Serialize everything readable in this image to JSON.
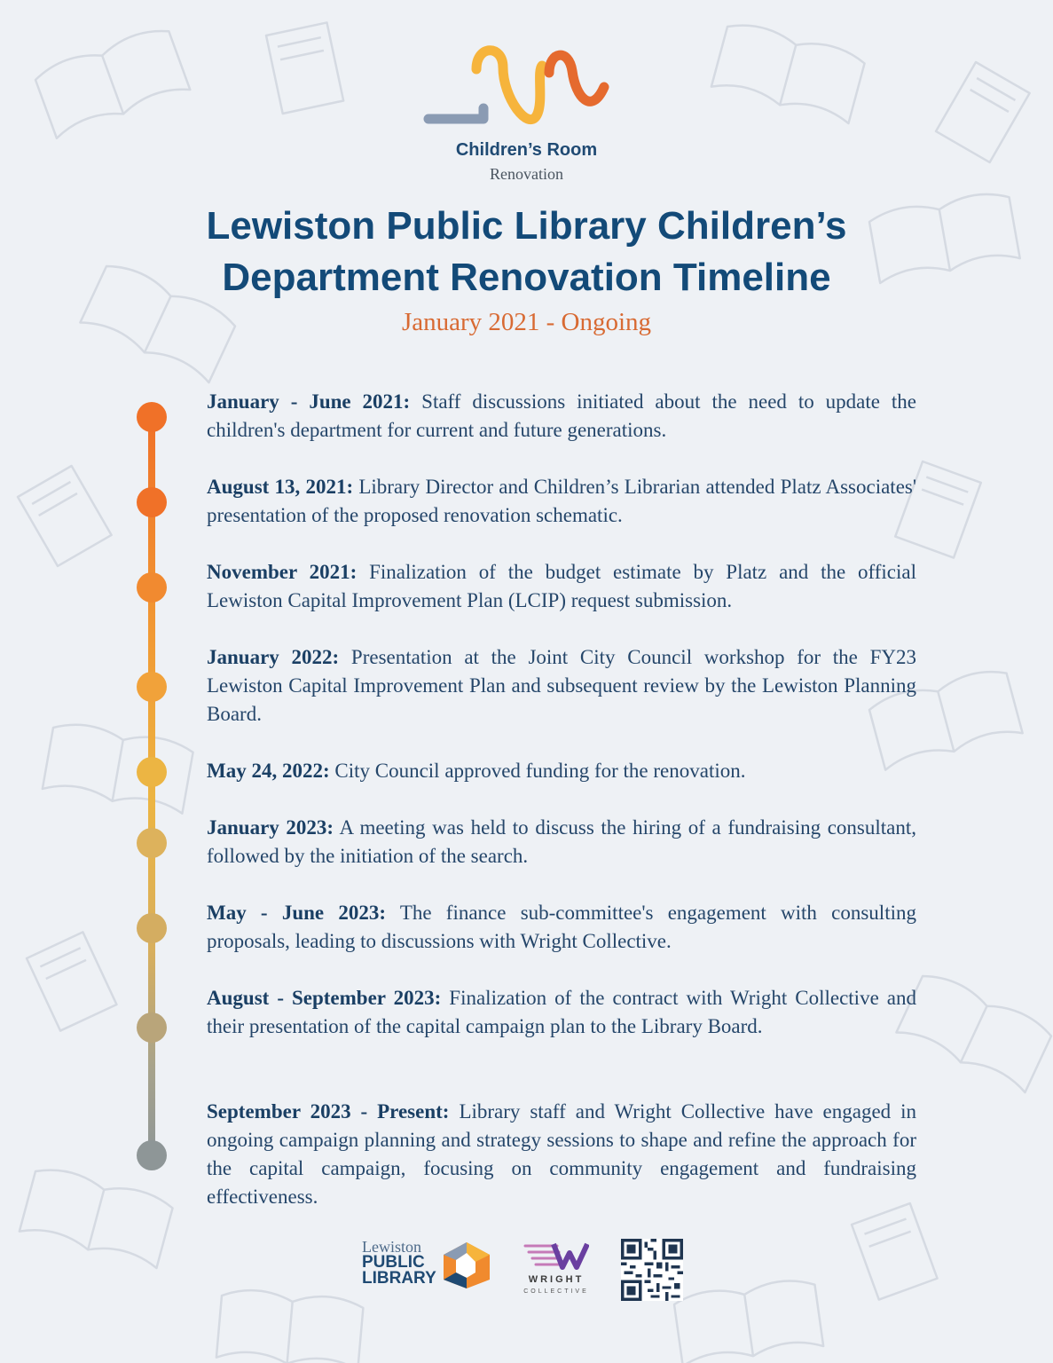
{
  "header": {
    "logo_title": "Children’s Room",
    "logo_subtitle": "Renovation",
    "title_line1": "Lewiston Public Library Children’s",
    "title_line2": "Department Renovation Timeline",
    "subtitle": "January 2021 - Ongoing"
  },
  "timeline": [
    {
      "date": "January - June 2021:",
      "text": "Staff discussions initiated about the need to update the children's department for current and future generations."
    },
    {
      "date": "August 13, 2021:",
      "text": "Library Director and Children’s Librarian attended Platz Associates' presentation of the proposed renovation schematic."
    },
    {
      "date": "November 2021:",
      "text": "Finalization of the budget estimate by Platz and the official Lewiston Capital Improvement Plan (LCIP) request submission."
    },
    {
      "date": "January 2022:",
      "text": "Presentation at the Joint City Council workshop for the FY23 Lewiston Capital Improvement Plan and subsequent review by the Lewiston Planning Board."
    },
    {
      "date": "May 24, 2022:",
      "text": "City Council approved funding for the renovation."
    },
    {
      "date": "January 2023:",
      "text": "A meeting was held to discuss the hiring of a fundraising consultant, followed by the initiation of the search."
    },
    {
      "date": "May - June 2023:",
      "text": "The finance sub-committee's engagement with consulting proposals, leading to discussions with Wright Collective."
    },
    {
      "date": "August - September 2023:",
      "text": "Finalization of the contract with Wright Collective and their presentation of the capital campaign plan to the Library Board."
    },
    {
      "date": "September 2023 - Present:",
      "text": "Library staff and Wright Collective have engaged in ongoing campaign planning and strategy sessions to shape and refine the approach for the capital campaign, focusing on community engagement and fundraising effectiveness."
    }
  ],
  "dot_colors": [
    "#f07128",
    "#f07128",
    "#f18a30",
    "#f1a23a",
    "#ecb543",
    "#ddb25c",
    "#d4ad61",
    "#b9a57a",
    "#8e9697"
  ],
  "footer": {
    "lpl_line1": "Lewiston",
    "lpl_line2": "PUBLIC",
    "lpl_line3": "LIBRARY",
    "wright_name": "WRIGHT",
    "wright_sub": "COLLECTIVE"
  },
  "colors": {
    "title": "#134a78",
    "subtitle": "#d86a33",
    "body_text": "#25466a",
    "background": "#eef1f5"
  }
}
